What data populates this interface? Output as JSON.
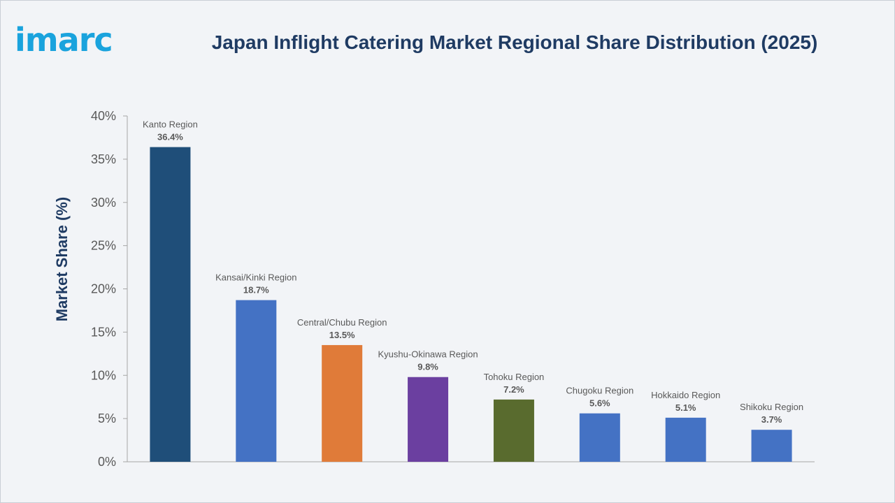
{
  "brand": {
    "logo_text": "imarc",
    "color": "#1aa3dd"
  },
  "chart_data": {
    "type": "bar",
    "title": "Japan Inflight Catering Market Regional Share Distribution (2025)",
    "ylabel": "Market Share (%)",
    "xlabel": "",
    "ylim": [
      0,
      40
    ],
    "yticks": [
      "0%",
      "5%",
      "10%",
      "15%",
      "20%",
      "25%",
      "30%",
      "35%",
      "40%"
    ],
    "grid": false,
    "categories": [
      "Kanto Region",
      "Kansai/Kinki Region",
      "Central/Chubu Region",
      "Kyushu-Okinawa Region",
      "Tohoku Region",
      "Chugoku Region",
      "Hokkaido Region",
      "Shikoku Region"
    ],
    "values": [
      36.4,
      18.7,
      13.5,
      9.8,
      7.2,
      5.6,
      5.1,
      3.7
    ],
    "value_labels": [
      "36.4%",
      "18.7%",
      "13.5%",
      "9.8%",
      "7.2%",
      "5.6%",
      "5.1%",
      "3.7%"
    ],
    "colors": [
      "#1f4e79",
      "#4472c4",
      "#e07b39",
      "#6b3fa0",
      "#596b2e",
      "#4472c4",
      "#4472c4",
      "#4472c4"
    ]
  }
}
